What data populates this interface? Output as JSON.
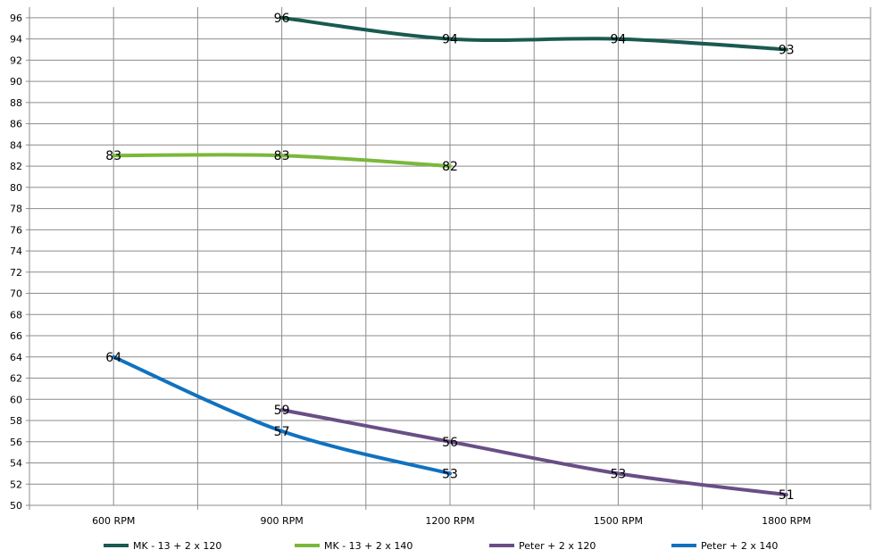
{
  "chart_data": {
    "type": "line",
    "title": "",
    "xlabel": "",
    "ylabel": "",
    "categories": [
      "600 RPM",
      "900 RPM",
      "1200 RPM",
      "1500 RPM",
      "1800 RPM"
    ],
    "ylim": [
      50,
      97
    ],
    "yticks": [
      50,
      52,
      54,
      56,
      58,
      60,
      62,
      64,
      66,
      68,
      70,
      72,
      74,
      76,
      78,
      80,
      82,
      84,
      86,
      88,
      90,
      92,
      94,
      96
    ],
    "grid": true,
    "legend_position": "bottom",
    "series": [
      {
        "name": "MK - 13 + 2 x 120",
        "color": "#1a5a50",
        "values": [
          null,
          96,
          94,
          94,
          93
        ]
      },
      {
        "name": "MK - 13 + 2 x 140",
        "color": "#7ab83a",
        "values": [
          83,
          83,
          82,
          null,
          null
        ]
      },
      {
        "name": "Peter + 2 x 120",
        "color": "#6a4e86",
        "values": [
          null,
          59,
          56,
          53,
          51
        ]
      },
      {
        "name": "Peter + 2 x 140",
        "color": "#0f72c0",
        "values": [
          64,
          57,
          53,
          null,
          null
        ]
      }
    ]
  }
}
